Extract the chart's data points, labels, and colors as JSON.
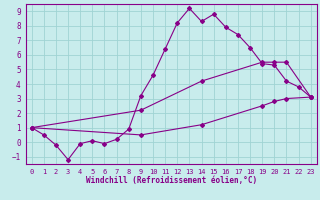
{
  "xlabel": "Windchill (Refroidissement éolien,°C)",
  "background_color": "#c8ecec",
  "line_color": "#880088",
  "xlim": [
    -0.5,
    23.5
  ],
  "ylim": [
    -1.5,
    9.5
  ],
  "xticks": [
    0,
    1,
    2,
    3,
    4,
    5,
    6,
    7,
    8,
    9,
    10,
    11,
    12,
    13,
    14,
    15,
    16,
    17,
    18,
    19,
    20,
    21,
    22,
    23
  ],
  "yticks": [
    -1,
    0,
    1,
    2,
    3,
    4,
    5,
    6,
    7,
    8,
    9
  ],
  "grid_color": "#a0d4d4",
  "x_main": [
    0,
    1,
    2,
    3,
    4,
    5,
    6,
    7,
    8,
    9,
    10,
    11,
    12,
    13,
    14,
    15,
    16,
    17,
    18,
    19,
    20,
    21,
    22,
    23
  ],
  "y_main": [
    1.0,
    0.5,
    -0.2,
    -1.2,
    -0.1,
    0.1,
    -0.1,
    0.2,
    0.9,
    3.2,
    4.6,
    6.4,
    8.2,
    9.2,
    8.3,
    8.8,
    7.9,
    7.4,
    6.5,
    5.4,
    5.3,
    4.2,
    3.8,
    3.1
  ],
  "x_upper": [
    0,
    9,
    14,
    19,
    20,
    21,
    23
  ],
  "y_upper": [
    1.0,
    2.2,
    4.2,
    5.5,
    5.5,
    5.5,
    3.1
  ],
  "x_lower": [
    0,
    9,
    14,
    19,
    20,
    21,
    23
  ],
  "y_lower": [
    1.0,
    0.5,
    1.2,
    2.5,
    2.8,
    3.0,
    3.1
  ]
}
